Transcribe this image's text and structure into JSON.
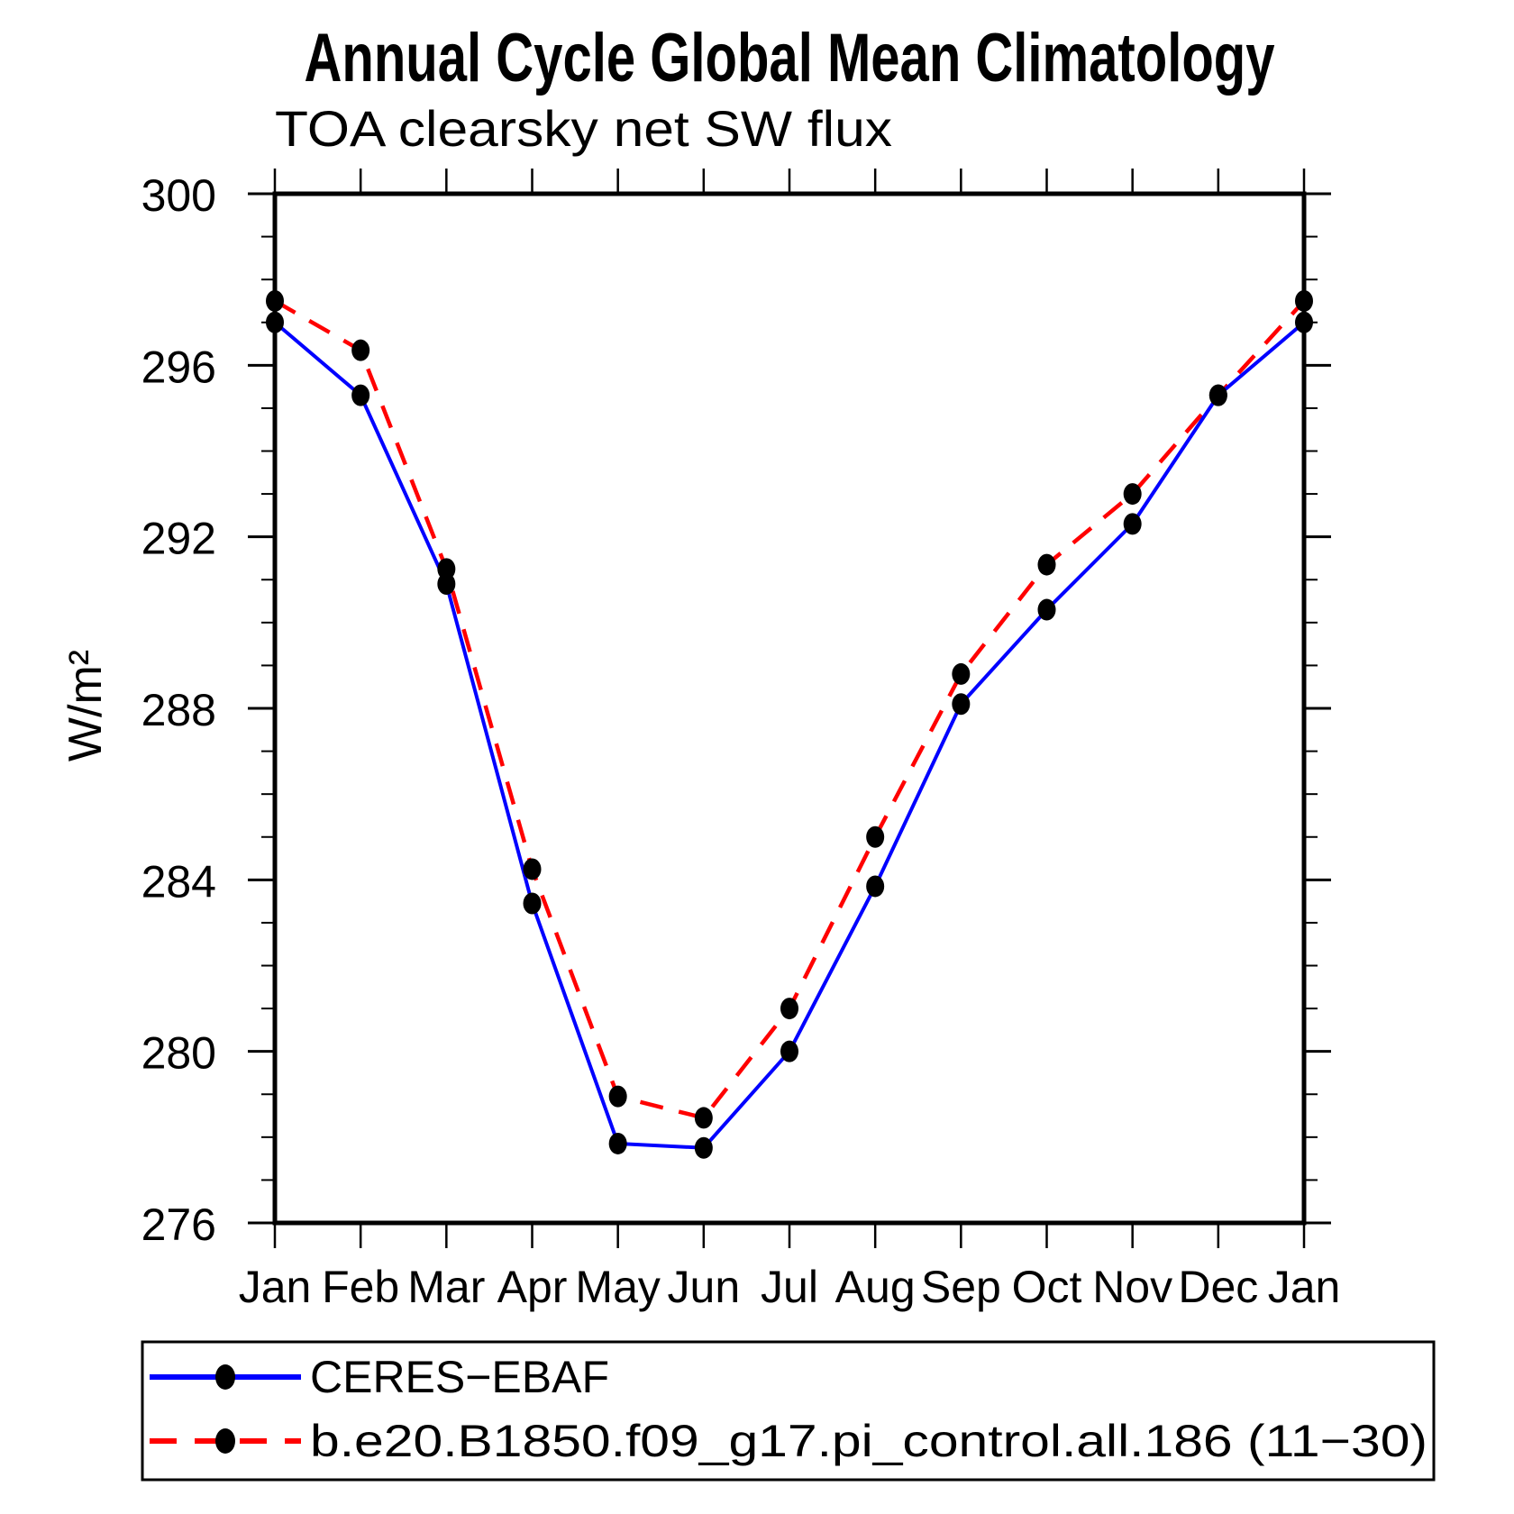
{
  "title": "Annual Cycle Global Mean Climatology",
  "subtitle": "TOA clearsky net SW flux",
  "chart_data": {
    "type": "line",
    "categories": [
      "Jan",
      "Feb",
      "Mar",
      "Apr",
      "May",
      "Jun",
      "Jul",
      "Aug",
      "Sep",
      "Oct",
      "Nov",
      "Dec",
      "Jan"
    ],
    "series": [
      {
        "name": "CERES−EBAF",
        "line_color": "#0000ff",
        "line_style": "solid",
        "marker": "filled-circle",
        "marker_color": "#000000",
        "values": [
          297.0,
          295.3,
          290.9,
          283.45,
          277.85,
          277.75,
          280.0,
          283.85,
          288.1,
          290.3,
          292.3,
          295.3,
          297.0
        ]
      },
      {
        "name": "b.e20.B1850.f09_g17.pi_control.all.186 (11−30)",
        "line_color": "#ff0000",
        "line_style": "dashed",
        "marker": "filled-circle",
        "marker_color": "#000000",
        "values": [
          297.5,
          296.35,
          291.25,
          284.25,
          278.95,
          278.45,
          281.0,
          285.0,
          288.8,
          291.35,
          293.0,
          295.3,
          297.5
        ]
      }
    ],
    "xlabel": "",
    "ylabel": "W/m²",
    "ylim": [
      276,
      300
    ],
    "yticks_major": [
      276,
      280,
      284,
      288,
      292,
      296,
      300
    ],
    "ytick_minor_step": 1,
    "grid": false,
    "legend_position": "bottom-left boxed",
    "axis_color": "#000000",
    "background_color": "#ffffff"
  }
}
